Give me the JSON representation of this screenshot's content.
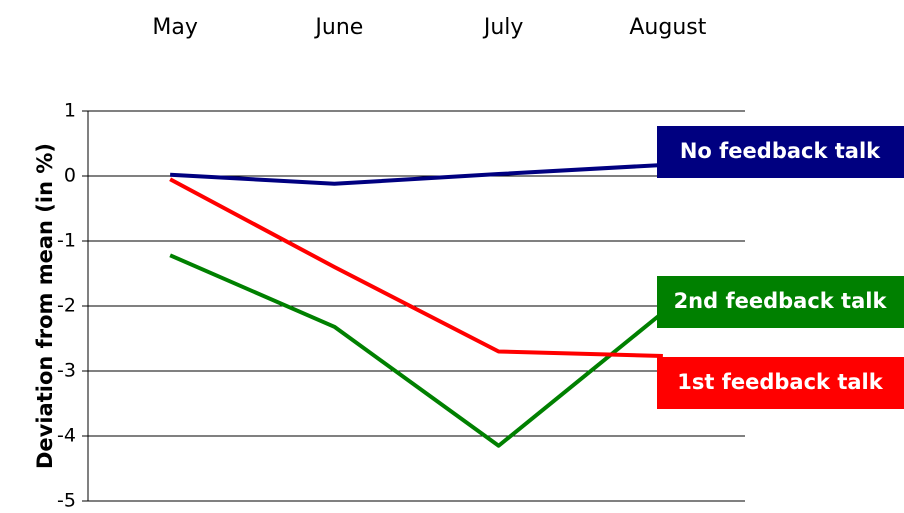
{
  "chart_data": {
    "type": "line",
    "y_label": "Deviation from mean (in  %)",
    "categories": [
      "May",
      "June",
      "July",
      "August"
    ],
    "series": [
      {
        "name": "No feedback talk",
        "color": "#000080",
        "values": [
          0.02,
          -0.12,
          0.03,
          0.17
        ]
      },
      {
        "name": "2nd feedback talk",
        "color": "#008000",
        "values": [
          -1.22,
          -2.32,
          -4.15,
          -2.1
        ]
      },
      {
        "name": "1st feedback talk",
        "color": "#ff0000",
        "values": [
          -0.05,
          -1.4,
          -2.7,
          -2.77
        ]
      }
    ],
    "ylim": [
      -5,
      1
    ],
    "yticks": [
      -5,
      -4,
      -3,
      -2,
      -1,
      0,
      1
    ],
    "grid": true
  }
}
